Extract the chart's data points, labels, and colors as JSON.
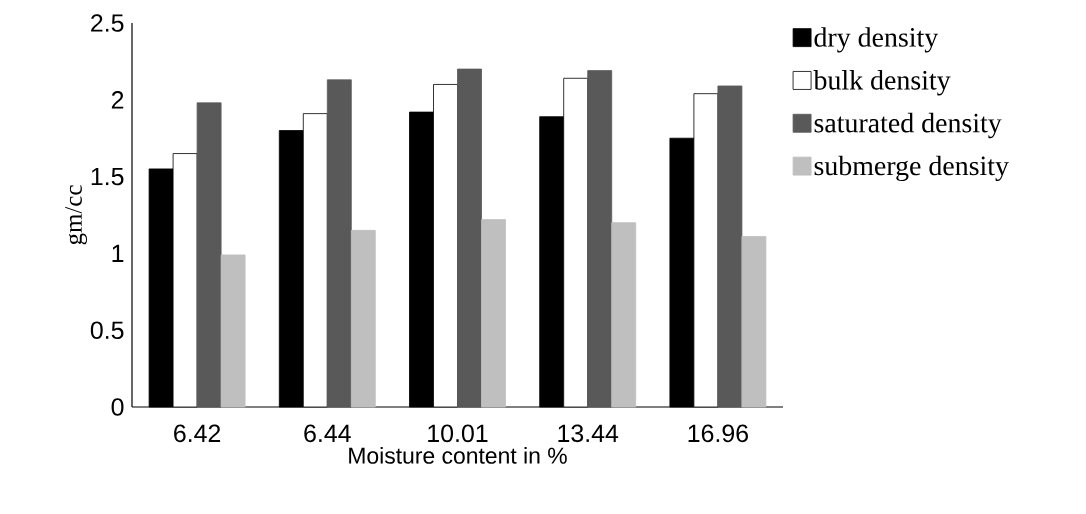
{
  "chart_data": {
    "type": "bar",
    "xlabel": "Moisture content in %",
    "ylabel": "gm/cc",
    "categories": [
      "6.42",
      "6.44",
      "10.01",
      "13.44",
      "16.96"
    ],
    "series": [
      {
        "name": "dry density",
        "color": "#000000",
        "values": [
          1.55,
          1.8,
          1.92,
          1.89,
          1.75
        ]
      },
      {
        "name": "bulk density",
        "color": "#ffffff",
        "values": [
          1.65,
          1.91,
          2.1,
          2.14,
          2.04
        ]
      },
      {
        "name": "saturated density",
        "color": "#595959",
        "values": [
          1.98,
          2.13,
          2.2,
          2.19,
          2.09
        ]
      },
      {
        "name": "submerge density",
        "color": "#bfbfbf",
        "values": [
          0.99,
          1.15,
          1.22,
          1.2,
          1.11
        ]
      }
    ],
    "ylim": [
      0,
      2.5
    ],
    "yticks": [
      0,
      0.5,
      1,
      1.5,
      2,
      2.5
    ],
    "grid": false,
    "legend": "right"
  }
}
